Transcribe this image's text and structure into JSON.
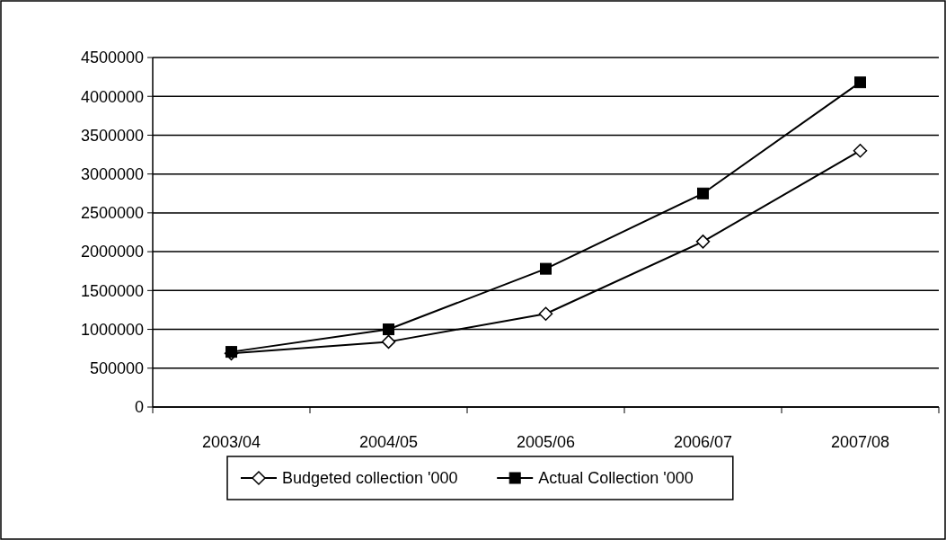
{
  "chart_data": {
    "type": "line",
    "categories": [
      "2003/04",
      "2004/05",
      "2005/06",
      "2006/07",
      "2007/08"
    ],
    "series": [
      {
        "name": "Budgeted collection '000",
        "color": "#000000",
        "marker": "diamond",
        "values": [
          690000,
          840000,
          1200000,
          2130000,
          3300000
        ]
      },
      {
        "name": "Actual Collection '000",
        "color": "#000000",
        "marker": "square",
        "values": [
          710000,
          1000000,
          1780000,
          2750000,
          4180000
        ]
      }
    ],
    "ylim": [
      0,
      4500000
    ],
    "yticks": [
      0,
      500000,
      1000000,
      1500000,
      2000000,
      2500000,
      3000000,
      3500000,
      4000000,
      4500000
    ],
    "grid": "y",
    "legend": "bottom",
    "line_style": "solid"
  }
}
